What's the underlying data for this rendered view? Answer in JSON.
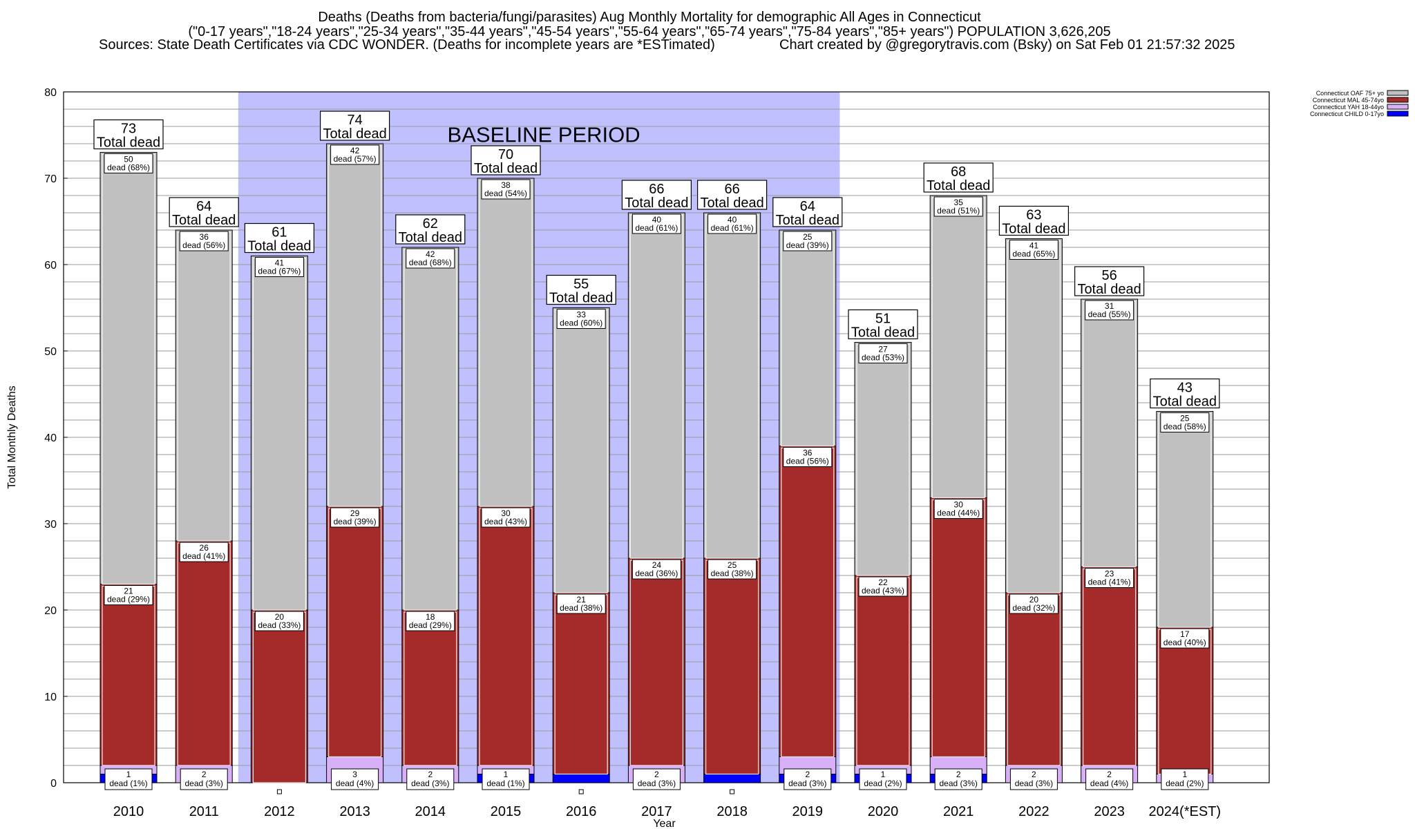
{
  "title": {
    "line1": "Deaths (Deaths from bacteria/fungi/parasites) Aug Monthly Mortality for demographic All Ages in Connecticut",
    "line2": "(\"0-17 years\",\"18-24 years\",\"25-34 years\",\"35-44 years\",\"45-54 years\",\"55-64 years\",\"65-74 years\",\"75-84 years\",\"85+ years\") POPULATION 3,626,205",
    "line3_left": "Sources: State Death Certificates via CDC WONDER. (Deaths for incomplete years are *ESTimated)",
    "line3_right": "Chart created by @gregorytravis.com (Bsky) on Sat Feb 01 21:57:32 2025"
  },
  "colors": {
    "oaf": "#c0c0c0",
    "mal": "#a52a2a",
    "yah": "#d8b0f8",
    "child": "#0000ff",
    "baseline": "#c0c0ff"
  },
  "chart_data": {
    "type": "bar",
    "stacked": true,
    "xlabel": "Year",
    "ylabel": "Total Monthly Deaths",
    "ylim": [
      0,
      80
    ],
    "yticks": [
      0,
      10,
      20,
      30,
      40,
      50,
      60,
      70,
      80
    ],
    "grid": true,
    "legend_position": "top-right",
    "categories": [
      "2010",
      "2011",
      "2012",
      "2013",
      "2014",
      "2015",
      "2016",
      "2017",
      "2018",
      "2019",
      "2020",
      "2021",
      "2022",
      "2023",
      "2024(*EST)"
    ],
    "baseline_period": {
      "label": "BASELINE PERIOD",
      "from": "2012",
      "to": "2019"
    },
    "series": [
      {
        "name": "Connecticut CHILD 0-17yo",
        "key": "child",
        "values": [
          1,
          0,
          0,
          0,
          0,
          1,
          1,
          0,
          1,
          1,
          1,
          1,
          0,
          0,
          0
        ]
      },
      {
        "name": "Connecticut YAH 18-44yo",
        "key": "yah",
        "values": [
          1,
          2,
          0,
          3,
          2,
          1,
          0,
          2,
          0,
          2,
          1,
          2,
          2,
          2,
          1
        ]
      },
      {
        "name": "Connecticut MAL 45-74yo",
        "key": "mal",
        "values": [
          21,
          26,
          20,
          29,
          18,
          30,
          21,
          24,
          25,
          36,
          22,
          30,
          20,
          23,
          17
        ]
      },
      {
        "name": "Connecticut OAF 75+ yo",
        "key": "oaf",
        "values": [
          50,
          36,
          41,
          42,
          42,
          38,
          33,
          40,
          40,
          25,
          27,
          35,
          41,
          31,
          25
        ]
      }
    ],
    "totals": [
      73,
      64,
      61,
      74,
      62,
      70,
      55,
      66,
      66,
      64,
      51,
      68,
      63,
      56,
      43
    ],
    "total_suffix": "Total dead",
    "segment_labels": {
      "oaf": [
        "dead (68%)",
        "dead (56%)",
        "dead (67%)",
        "dead (57%)",
        "dead (68%)",
        "dead (54%)",
        "dead (60%)",
        "dead (61%)",
        "dead (61%)",
        "dead (39%)",
        "dead (53%)",
        "dead (51%)",
        "dead (65%)",
        "dead (55%)",
        "dead (58%)"
      ],
      "mal": [
        "dead (29%)",
        "dead (41%)",
        "dead (33%)",
        "dead (39%)",
        "dead (29%)",
        "dead (43%)",
        "dead (38%)",
        "dead (36%)",
        "dead (38%)",
        "dead (56%)",
        "dead (43%)",
        "dead (44%)",
        "dead (32%)",
        "dead (41%)",
        "dead (40%)"
      ],
      "yah": [
        "dead (1%)",
        "dead (3%)",
        "",
        "dead (4%)",
        "dead (3%)",
        "dead (1%)",
        "",
        "dead (3%)",
        "",
        "dead (3%)",
        "dead (2%)",
        "dead (3%)",
        "dead (3%)",
        "dead (4%)",
        "dead (2%)"
      ]
    }
  }
}
